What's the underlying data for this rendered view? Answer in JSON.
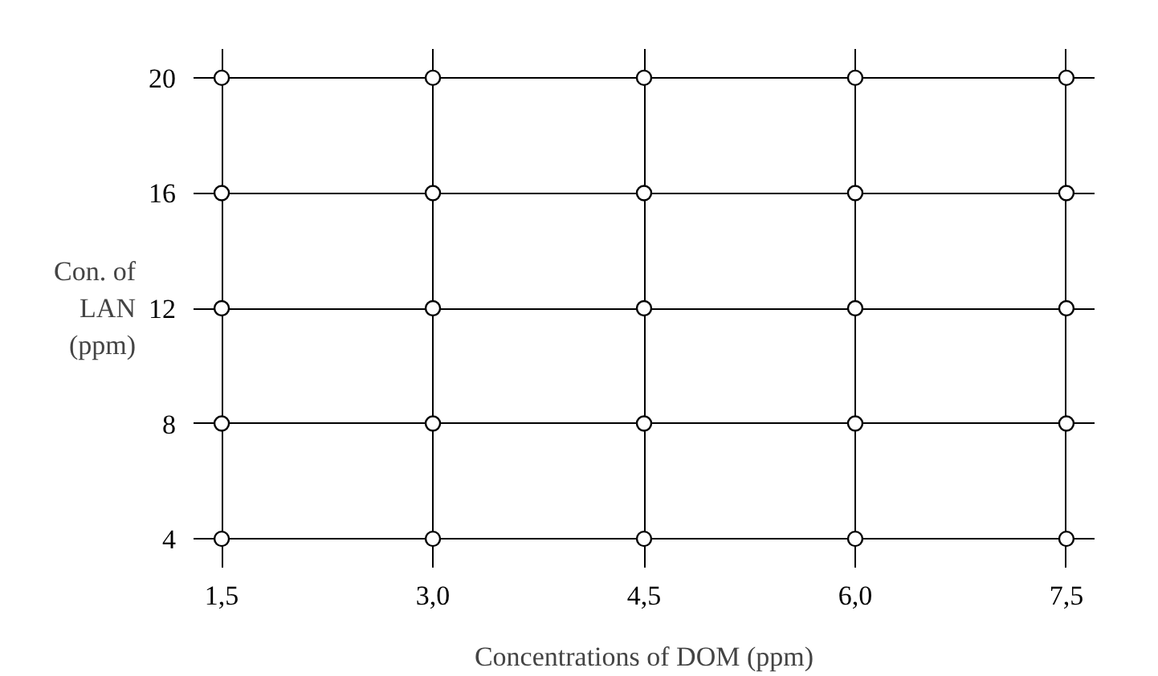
{
  "chart_data": {
    "type": "scatter",
    "xlabel": "Concentrations of DOM (ppm)",
    "ylabel": "Con. of\nLAN\n(ppm)",
    "x": [
      1.5,
      3.0,
      4.5,
      6.0,
      7.5,
      1.5,
      3.0,
      4.5,
      6.0,
      7.5,
      1.5,
      3.0,
      4.5,
      6.0,
      7.5,
      1.5,
      3.0,
      4.5,
      6.0,
      7.5,
      1.5,
      3.0,
      4.5,
      6.0,
      7.5
    ],
    "series": [
      {
        "color": "#000000",
        "values": [
          4,
          4,
          4,
          4,
          4,
          8,
          8,
          8,
          8,
          8,
          12,
          12,
          12,
          12,
          12,
          16,
          16,
          16,
          16,
          16,
          20,
          20,
          20,
          20,
          20
        ]
      }
    ],
    "xlim": [
      1.3,
      7.7
    ],
    "ylim": [
      3,
      21
    ],
    "xticks": [
      {
        "value": 1.5,
        "label": "1,5"
      },
      {
        "value": 3.0,
        "label": "3,0"
      },
      {
        "value": 4.5,
        "label": "4,5"
      },
      {
        "value": 6.0,
        "label": "6,0"
      },
      {
        "value": 7.5,
        "label": "7,5"
      }
    ],
    "yticks": [
      4,
      8,
      12,
      16,
      20
    ],
    "grid": true,
    "marker": "circle"
  }
}
